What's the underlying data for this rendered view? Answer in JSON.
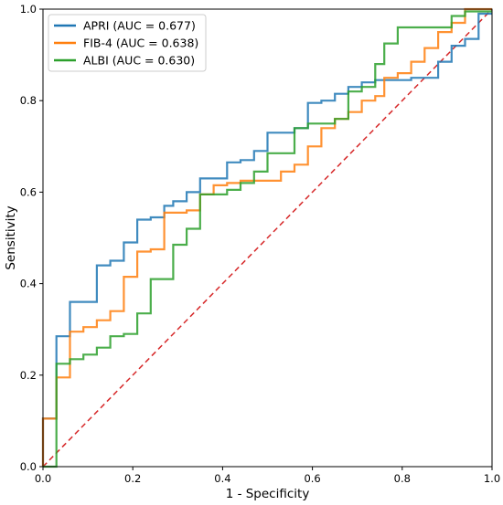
{
  "chart_data": {
    "type": "line",
    "xlabel": "1 - Specificity",
    "ylabel": "Sensitivity",
    "xlim": [
      0,
      1
    ],
    "ylim": [
      0,
      1
    ],
    "xticks": [
      "0.0",
      "0.2",
      "0.4",
      "0.6",
      "0.8",
      "1.0"
    ],
    "yticks": [
      "0.0",
      "0.2",
      "0.4",
      "0.6",
      "0.8",
      "1.0"
    ],
    "grid": false,
    "legend_position": "top-left",
    "reference_line": {
      "x": [
        0,
        1
      ],
      "y": [
        0,
        1
      ],
      "color": "#d62728",
      "style": "dashed"
    },
    "series": [
      {
        "name": "APRI (AUC = 0.677)",
        "color": "#1f77b4",
        "x": [
          0.0,
          0.0,
          0.03,
          0.03,
          0.06,
          0.06,
          0.12,
          0.12,
          0.15,
          0.15,
          0.18,
          0.18,
          0.21,
          0.21,
          0.24,
          0.24,
          0.27,
          0.27,
          0.29,
          0.29,
          0.32,
          0.32,
          0.35,
          0.35,
          0.41,
          0.41,
          0.44,
          0.44,
          0.47,
          0.47,
          0.5,
          0.5,
          0.56,
          0.56,
          0.59,
          0.59,
          0.62,
          0.62,
          0.65,
          0.65,
          0.68,
          0.68,
          0.71,
          0.71,
          0.74,
          0.74,
          0.76,
          0.76,
          0.82,
          0.82,
          0.88,
          0.88,
          0.91,
          0.91,
          0.94,
          0.94,
          0.97,
          0.97,
          1.0
        ],
        "y": [
          0.0,
          0.105,
          0.105,
          0.285,
          0.285,
          0.36,
          0.36,
          0.44,
          0.44,
          0.45,
          0.45,
          0.49,
          0.49,
          0.54,
          0.54,
          0.545,
          0.545,
          0.57,
          0.57,
          0.58,
          0.58,
          0.6,
          0.6,
          0.63,
          0.63,
          0.665,
          0.665,
          0.67,
          0.67,
          0.69,
          0.69,
          0.73,
          0.73,
          0.74,
          0.74,
          0.795,
          0.795,
          0.8,
          0.8,
          0.815,
          0.815,
          0.83,
          0.83,
          0.84,
          0.84,
          0.845,
          0.845,
          0.845,
          0.845,
          0.85,
          0.85,
          0.885,
          0.885,
          0.92,
          0.92,
          0.935,
          0.935,
          0.99,
          0.99
        ]
      },
      {
        "name": "FIB-4 (AUC = 0.638)",
        "color": "#ff7f0e",
        "x": [
          0.0,
          0.0,
          0.03,
          0.03,
          0.06,
          0.06,
          0.09,
          0.09,
          0.12,
          0.12,
          0.15,
          0.15,
          0.18,
          0.18,
          0.21,
          0.21,
          0.24,
          0.24,
          0.27,
          0.27,
          0.32,
          0.32,
          0.35,
          0.35,
          0.38,
          0.38,
          0.41,
          0.41,
          0.44,
          0.44,
          0.53,
          0.53,
          0.56,
          0.56,
          0.59,
          0.59,
          0.62,
          0.62,
          0.65,
          0.65,
          0.68,
          0.68,
          0.71,
          0.71,
          0.74,
          0.74,
          0.76,
          0.76,
          0.79,
          0.79,
          0.82,
          0.82,
          0.85,
          0.85,
          0.88,
          0.88,
          0.91,
          0.91,
          0.94,
          0.94,
          1.0
        ],
        "y": [
          0.0,
          0.105,
          0.105,
          0.195,
          0.195,
          0.295,
          0.295,
          0.305,
          0.305,
          0.32,
          0.32,
          0.34,
          0.34,
          0.415,
          0.415,
          0.47,
          0.47,
          0.475,
          0.475,
          0.555,
          0.555,
          0.56,
          0.56,
          0.595,
          0.595,
          0.615,
          0.615,
          0.62,
          0.62,
          0.625,
          0.625,
          0.645,
          0.645,
          0.66,
          0.66,
          0.7,
          0.7,
          0.74,
          0.74,
          0.76,
          0.76,
          0.775,
          0.775,
          0.8,
          0.8,
          0.81,
          0.81,
          0.85,
          0.85,
          0.86,
          0.86,
          0.885,
          0.885,
          0.915,
          0.915,
          0.95,
          0.95,
          0.97,
          0.97,
          1.0,
          1.0
        ]
      },
      {
        "name": "ALBI (AUC = 0.630)",
        "color": "#2ca02c",
        "x": [
          0.0,
          0.0,
          0.03,
          0.03,
          0.06,
          0.06,
          0.09,
          0.09,
          0.12,
          0.12,
          0.15,
          0.15,
          0.18,
          0.18,
          0.21,
          0.21,
          0.24,
          0.24,
          0.29,
          0.29,
          0.32,
          0.32,
          0.35,
          0.35,
          0.41,
          0.41,
          0.44,
          0.44,
          0.47,
          0.47,
          0.5,
          0.5,
          0.56,
          0.56,
          0.59,
          0.59,
          0.65,
          0.65,
          0.68,
          0.68,
          0.71,
          0.71,
          0.74,
          0.74,
          0.76,
          0.76,
          0.79,
          0.79,
          0.91,
          0.91,
          0.94,
          0.94,
          1.0
        ],
        "y": [
          0.0,
          0.0,
          0.0,
          0.225,
          0.225,
          0.235,
          0.235,
          0.245,
          0.245,
          0.26,
          0.26,
          0.285,
          0.285,
          0.29,
          0.29,
          0.335,
          0.335,
          0.41,
          0.41,
          0.485,
          0.485,
          0.52,
          0.52,
          0.595,
          0.595,
          0.605,
          0.605,
          0.62,
          0.62,
          0.645,
          0.645,
          0.685,
          0.685,
          0.74,
          0.74,
          0.75,
          0.75,
          0.76,
          0.76,
          0.82,
          0.82,
          0.83,
          0.83,
          0.88,
          0.88,
          0.925,
          0.925,
          0.96,
          0.96,
          0.985,
          0.985,
          0.995,
          0.995
        ]
      }
    ]
  }
}
